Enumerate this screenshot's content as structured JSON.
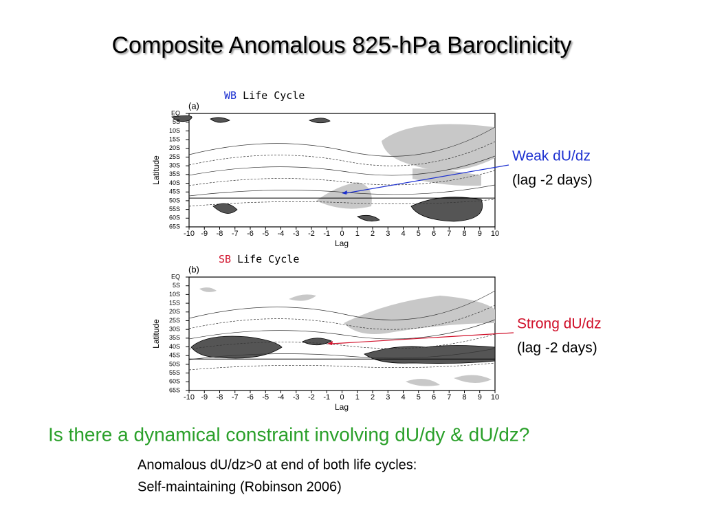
{
  "title": "Composite Anomalous 825-hPa Baroclinicity",
  "panels": [
    {
      "tag": "WB",
      "tag_rest": "Life Cycle",
      "panel_label": "(a)",
      "y_label": "Latitude",
      "x_label": "Lag",
      "lat_ticks": [
        "EQ",
        "5S",
        "10S",
        "15S",
        "20S",
        "25S",
        "30S",
        "35S",
        "40S",
        "45S",
        "50S",
        "55S",
        "60S",
        "65S"
      ],
      "lag_ticks": [
        "-10",
        "-9",
        "-8",
        "-7",
        "-6",
        "-5",
        "-4",
        "-3",
        "-2",
        "-1",
        "0",
        "1",
        "2",
        "3",
        "4",
        "5",
        "6",
        "7",
        "8",
        "9",
        "10"
      ],
      "annotation": [
        "Weak dU/dz",
        "(lag -2 days)"
      ]
    },
    {
      "tag": "SB",
      "tag_rest": "Life Cycle",
      "panel_label": "(b)",
      "y_label": "Latitude",
      "x_label": "Lag",
      "lat_ticks": [
        "EQ",
        "5S",
        "10S",
        "15S",
        "20S",
        "25S",
        "30S",
        "35S",
        "40S",
        "45S",
        "50S",
        "55S",
        "60S",
        "65S"
      ],
      "lag_ticks": [
        "-10",
        "-9",
        "-8",
        "-7",
        "-6",
        "-5",
        "-4",
        "-3",
        "-2",
        "-1",
        "0",
        "1",
        "2",
        "3",
        "4",
        "5",
        "6",
        "7",
        "8",
        "9",
        "10"
      ],
      "annotation": [
        "Strong dU/dz",
        "(lag -2 days)"
      ]
    }
  ],
  "question": "Is there a dynamical constraint involving dU/dy & dU/dz?",
  "notes": [
    "Anomalous dU/dz>0 at end of both life cycles:",
    "Self-maintaining (Robinson 2006)"
  ]
}
